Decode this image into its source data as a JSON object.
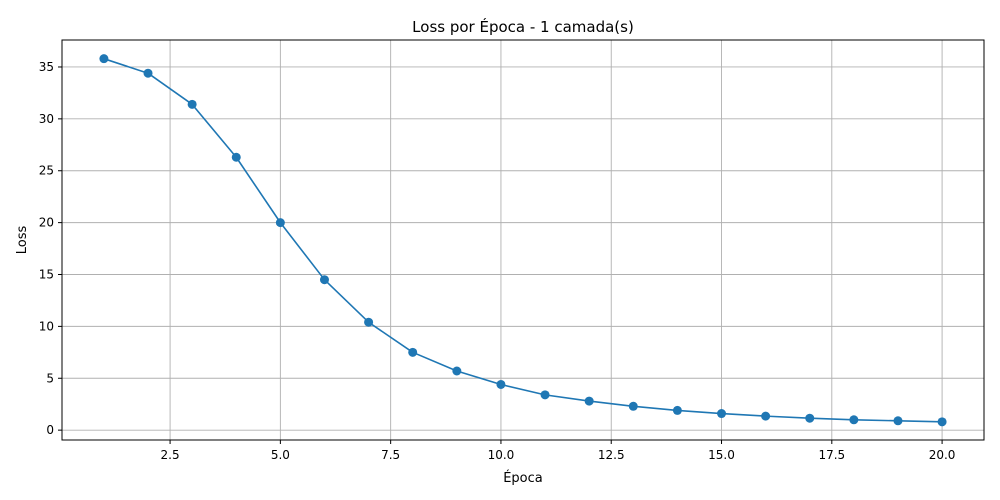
{
  "chart_data": {
    "type": "line",
    "title": "Loss por Época - 1 camada(s)",
    "xlabel": "Época",
    "ylabel": "Loss",
    "xlim": [
      0.05,
      20.95
    ],
    "ylim": [
      -0.95,
      37.6
    ],
    "grid": true,
    "legend": "none",
    "x_ticks": [
      2.5,
      5.0,
      7.5,
      10.0,
      12.5,
      15.0,
      17.5,
      20.0
    ],
    "x_tick_labels": [
      "2.5",
      "5.0",
      "7.5",
      "10.0",
      "12.5",
      "15.0",
      "17.5",
      "20.0"
    ],
    "y_ticks": [
      0,
      5,
      10,
      15,
      20,
      25,
      30,
      35
    ],
    "y_tick_labels": [
      "0",
      "5",
      "10",
      "15",
      "20",
      "25",
      "30",
      "35"
    ],
    "color": "#1f77b4",
    "marker": "circle",
    "series": [
      {
        "x": [
          1,
          2,
          3,
          4,
          5,
          6,
          7,
          8,
          9,
          10,
          11,
          12,
          13,
          14,
          15,
          16,
          17,
          18,
          19,
          20
        ],
        "values": [
          35.8,
          34.4,
          31.4,
          26.3,
          20.0,
          14.5,
          10.4,
          7.5,
          5.7,
          4.4,
          3.4,
          2.8,
          2.3,
          1.9,
          1.6,
          1.35,
          1.15,
          1.0,
          0.9,
          0.8
        ]
      }
    ]
  }
}
